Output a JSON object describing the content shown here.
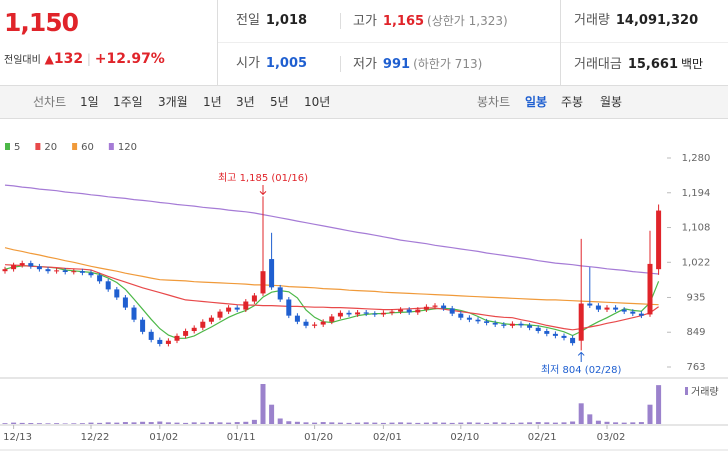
{
  "header": {
    "price": "1,150",
    "change_label": "전일대비",
    "change": "132",
    "change_rate": "+12.97%",
    "stats": [
      {
        "label": "전일",
        "value": "1,018"
      },
      {
        "label": "고가",
        "value": "1,165",
        "note": "(상한가 1,323)"
      },
      {
        "label": "거래량",
        "value": "14,091,320"
      },
      {
        "label": "시가",
        "value": "1,005"
      },
      {
        "label": "저가",
        "value": "991",
        "note": "(하한가 713)"
      },
      {
        "label": "거래대금",
        "value": "15,661",
        "unit": "백만"
      }
    ]
  },
  "toolbar": {
    "line_label": "선차트",
    "line_periods": [
      "1일",
      "1주일",
      "3개월",
      "1년",
      "3년",
      "5년",
      "10년"
    ],
    "candle_label": "봉차트",
    "candle_periods": [
      "일봉",
      "주봉",
      "월봉"
    ]
  },
  "chart_data": {
    "type": "candlestick",
    "categories": [
      null,
      "12/13",
      null,
      null,
      null,
      null,
      null,
      null,
      null,
      null,
      "12/22",
      null,
      null,
      null,
      null,
      null,
      null,
      null,
      "01/02",
      null,
      null,
      null,
      null,
      null,
      null,
      null,
      null,
      "01/11",
      null,
      null,
      null,
      null,
      null,
      null,
      null,
      null,
      "01/20",
      null,
      null,
      null,
      null,
      null,
      null,
      null,
      "02/01",
      null,
      null,
      null,
      null,
      null,
      null,
      null,
      null,
      "02/10",
      null,
      null,
      null,
      null,
      null,
      null,
      null,
      null,
      "02/21",
      null,
      null,
      null,
      null,
      null,
      null,
      null,
      "03/02",
      null,
      null,
      null,
      null,
      null,
      null
    ],
    "open": [
      1000,
      1005,
      1015,
      1020,
      1012,
      1005,
      1000,
      1002,
      998,
      1000,
      996,
      990,
      975,
      955,
      935,
      910,
      880,
      850,
      830,
      820,
      828,
      840,
      852,
      860,
      875,
      885,
      900,
      910,
      905,
      925,
      945,
      1030,
      960,
      930,
      890,
      875,
      865,
      868,
      875,
      888,
      897,
      893,
      898,
      895,
      893,
      897,
      900,
      905,
      898,
      905,
      912,
      915,
      908,
      895,
      885,
      880,
      876,
      872,
      868,
      865,
      870,
      866,
      860,
      852,
      845,
      840,
      835,
      828,
      920,
      915,
      905,
      910,
      905,
      900,
      895,
      893,
      1005
    ],
    "high": [
      1011,
      1021,
      1026,
      1026,
      1018,
      1011,
      1008,
      1008,
      1006,
      1006,
      1002,
      996,
      981,
      961,
      941,
      916,
      886,
      856,
      836,
      834,
      846,
      858,
      866,
      881,
      891,
      906,
      916,
      916,
      931,
      946,
      1185,
      1095,
      966,
      936,
      896,
      881,
      874,
      881,
      894,
      903,
      903,
      904,
      904,
      901,
      903,
      906,
      911,
      911,
      911,
      918,
      921,
      921,
      914,
      901,
      891,
      886,
      882,
      878,
      874,
      876,
      876,
      872,
      866,
      858,
      851,
      846,
      841,
      1080,
      1010,
      921,
      916,
      916,
      911,
      906,
      901,
      1100,
      1165
    ],
    "low": [
      994,
      999,
      1009,
      1006,
      999,
      994,
      994,
      992,
      992,
      990,
      984,
      969,
      949,
      929,
      904,
      874,
      844,
      824,
      814,
      814,
      822,
      834,
      846,
      854,
      869,
      879,
      894,
      899,
      899,
      919,
      939,
      954,
      924,
      884,
      869,
      859,
      859,
      862,
      869,
      882,
      887,
      887,
      889,
      887,
      887,
      891,
      894,
      892,
      892,
      899,
      906,
      902,
      889,
      879,
      874,
      870,
      866,
      862,
      859,
      859,
      860,
      854,
      846,
      839,
      834,
      829,
      816,
      804,
      909,
      899,
      899,
      899,
      894,
      889,
      884,
      887,
      991
    ],
    "close": [
      1005,
      1015,
      1020,
      1012,
      1005,
      1000,
      1002,
      998,
      1000,
      996,
      990,
      975,
      955,
      935,
      910,
      880,
      850,
      830,
      820,
      828,
      840,
      852,
      860,
      875,
      885,
      900,
      910,
      905,
      925,
      940,
      1000,
      960,
      930,
      890,
      875,
      865,
      868,
      875,
      888,
      897,
      893,
      898,
      895,
      893,
      897,
      900,
      905,
      898,
      905,
      912,
      915,
      908,
      895,
      885,
      880,
      876,
      872,
      868,
      865,
      870,
      866,
      860,
      852,
      845,
      840,
      835,
      822,
      920,
      915,
      905,
      910,
      905,
      900,
      895,
      890,
      1018,
      1150
    ],
    "up_color": "#e0242a",
    "down_color": "#1f5fd0",
    "series": [
      {
        "name": "5",
        "color": "#4cb848",
        "values": [
          1005,
          1010,
          1013,
          1013,
          1011,
          1010,
          1008,
          1003,
          1001,
          999,
          997,
          992,
          983,
          972,
          955,
          931,
          906,
          881,
          858,
          842,
          834,
          834,
          840,
          851,
          862,
          874,
          886,
          895,
          903,
          915,
          936,
          948,
          952,
          949,
          934,
          904,
          886,
          875,
          873,
          879,
          884,
          890,
          893,
          895,
          895,
          897,
          898,
          899,
          901,
          904,
          907,
          908,
          907,
          903,
          897,
          888,
          878,
          874,
          870,
          868,
          868,
          867,
          865,
          861,
          856,
          850,
          841,
          851,
          864,
          875,
          885,
          896,
          907,
          903,
          901,
          922,
          975
        ]
      },
      {
        "name": "20",
        "color": "#e8494a",
        "values": [
          1016,
          1015,
          1014,
          1012,
          1011,
          1010,
          1009,
          1007,
          1006,
          1005,
          1003,
          995,
          987,
          980,
          973,
          966,
          959,
          953,
          947,
          941,
          935,
          929,
          927,
          925,
          923,
          921,
          919,
          917,
          916,
          916,
          915,
          915,
          914,
          913,
          913,
          912,
          911,
          911,
          910,
          910,
          909,
          908,
          907,
          906,
          905,
          905,
          906,
          907,
          908,
          909,
          909,
          906,
          903,
          900,
          897,
          894,
          891,
          888,
          886,
          885,
          880,
          876,
          871,
          866,
          862,
          858,
          855,
          858,
          862,
          866,
          871,
          875,
          880,
          885,
          890,
          897,
          912
        ]
      },
      {
        "name": "60",
        "color": "#f09a3a",
        "values": [
          1058,
          1053,
          1049,
          1044,
          1040,
          1035,
          1031,
          1026,
          1022,
          1017,
          1012,
          1008,
          1004,
          1000,
          995,
          991,
          987,
          983,
          979,
          978,
          977,
          976,
          974,
          973,
          972,
          971,
          970,
          969,
          968,
          966,
          966,
          965,
          964,
          962,
          961,
          960,
          959,
          957,
          956,
          955,
          953,
          952,
          951,
          950,
          948,
          947,
          946,
          945,
          944,
          943,
          942,
          941,
          940,
          939,
          938,
          937,
          936,
          935,
          934,
          933,
          932,
          931,
          930,
          929,
          929,
          928,
          927,
          926,
          925,
          924,
          923,
          922,
          921,
          920,
          919,
          918,
          917
        ]
      },
      {
        "name": "120",
        "color": "#a57bd6",
        "values": [
          1213,
          1211,
          1208,
          1206,
          1203,
          1201,
          1199,
          1196,
          1194,
          1192,
          1189,
          1187,
          1184,
          1182,
          1180,
          1177,
          1175,
          1173,
          1170,
          1168,
          1165,
          1163,
          1161,
          1158,
          1156,
          1154,
          1151,
          1149,
          1147,
          1144,
          1140,
          1136,
          1132,
          1128,
          1124,
          1120,
          1116,
          1112,
          1108,
          1104,
          1100,
          1096,
          1093,
          1089,
          1085,
          1081,
          1077,
          1074,
          1071,
          1068,
          1064,
          1061,
          1058,
          1055,
          1052,
          1049,
          1045,
          1042,
          1039,
          1036,
          1033,
          1030,
          1026,
          1023,
          1020,
          1018,
          1016,
          1013,
          1011,
          1009,
          1006,
          1004,
          1002,
          999,
          997,
          995,
          993
        ]
      }
    ],
    "volume": {
      "name": "거래량",
      "color": "#9b82cc",
      "values": [
        300000,
        500000,
        400000,
        350000,
        300000,
        250000,
        300000,
        200000,
        250000,
        300000,
        500000,
        400000,
        600000,
        500000,
        700000,
        600000,
        800000,
        700000,
        900000,
        600000,
        500000,
        400000,
        600000,
        500000,
        700000,
        600000,
        500000,
        700000,
        800000,
        1500000,
        14500000,
        7000000,
        2000000,
        1000000,
        800000,
        600000,
        500000,
        700000,
        600000,
        500000,
        400000,
        500000,
        600000,
        500000,
        400000,
        500000,
        600000,
        500000,
        400000,
        500000,
        600000,
        500000,
        400000,
        500000,
        600000,
        500000,
        400000,
        600000,
        500000,
        400000,
        500000,
        600000,
        700000,
        600000,
        500000,
        600000,
        900000,
        7500000,
        3500000,
        1200000,
        800000,
        600000,
        500000,
        600000,
        700000,
        7000000,
        14091320
      ]
    },
    "ylim": [
      763,
      1280
    ],
    "yticks": [
      {
        "value": 1280,
        "label": "1,280"
      },
      {
        "value": 1194,
        "label": "1,194"
      },
      {
        "value": 1108,
        "label": "1,108"
      },
      {
        "value": 1022,
        "label": "1,022"
      },
      935,
      849,
      763
    ],
    "annotations": [
      {
        "text": "최고 1,185 (01/16)"
      },
      {
        "text": "최저 804 (02/28)"
      }
    ]
  }
}
